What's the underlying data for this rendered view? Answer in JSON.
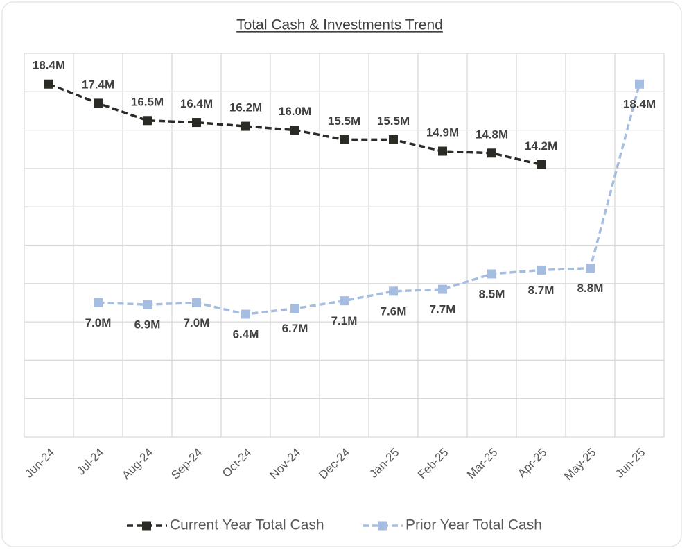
{
  "chart_data": {
    "type": "line",
    "title": "Total Cash & Investments Trend",
    "categories": [
      "Jun-24",
      "Jul-24",
      "Aug-24",
      "Sep-24",
      "Oct-24",
      "Nov-24",
      "Dec-24",
      "Jan-25",
      "Feb-25",
      "Mar-25",
      "Apr-25",
      "May-25",
      "Jun-25"
    ],
    "series": [
      {
        "name": "Current Year Total Cash",
        "color": "#2b2b25",
        "values": [
          18.4,
          17.4,
          16.5,
          16.4,
          16.2,
          16.0,
          15.5,
          15.5,
          14.9,
          14.8,
          14.2,
          null,
          null
        ],
        "value_labels": [
          "18.4M",
          "17.4M",
          "16.5M",
          "16.4M",
          "16.2M",
          "16.0M",
          "15.5M",
          "15.5M",
          "14.9M",
          "14.8M",
          "14.2M",
          null,
          null
        ]
      },
      {
        "name": "Prior Year Total Cash",
        "color": "#a6bde2",
        "values": [
          null,
          7.0,
          6.9,
          7.0,
          6.4,
          6.7,
          7.1,
          7.6,
          7.7,
          8.5,
          8.7,
          8.8,
          18.4
        ],
        "value_labels": [
          null,
          "7.0M",
          "6.9M",
          "7.0M",
          "6.4M",
          "6.7M",
          "7.1M",
          "7.6M",
          "7.7M",
          "8.5M",
          "8.7M",
          "8.8M",
          "18.4M"
        ]
      }
    ],
    "ylim": [
      0,
      20
    ],
    "yticks": [
      0,
      2,
      4,
      6,
      8,
      10,
      12,
      14,
      16,
      18,
      20
    ],
    "grid": true,
    "legend": "bottom"
  }
}
